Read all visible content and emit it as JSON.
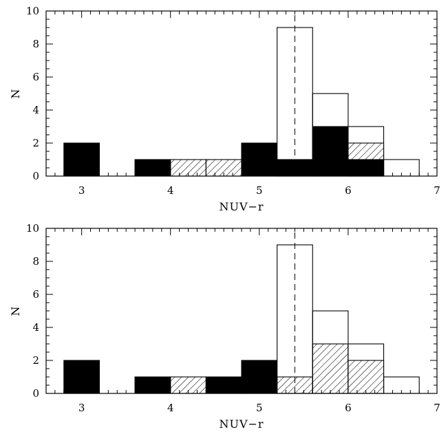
{
  "chart_data": [
    {
      "type": "histogram",
      "xlabel": "NUV−r",
      "ylabel": "N",
      "xlim": [
        2.6,
        7.0
      ],
      "ylim": [
        0,
        10
      ],
      "x_ticks": [
        3,
        4,
        5,
        6,
        7
      ],
      "y_ticks": [
        0,
        2,
        4,
        6,
        8,
        10
      ],
      "bin_width": 0.4,
      "reference_line": {
        "x": 5.4,
        "style": "dashed"
      },
      "series": [
        {
          "style": "open",
          "bins": [
            {
              "start": 2.8,
              "count": 0
            },
            {
              "start": 5.2,
              "count": 9
            },
            {
              "start": 5.6,
              "count": 5
            },
            {
              "start": 6.0,
              "count": 3
            },
            {
              "start": 6.4,
              "count": 1
            }
          ]
        },
        {
          "style": "hatched",
          "bins": [
            {
              "start": 4.0,
              "count": 1
            },
            {
              "start": 4.4,
              "count": 1
            },
            {
              "start": 6.0,
              "count": 2
            }
          ]
        },
        {
          "style": "solid",
          "bins": [
            {
              "start": 2.8,
              "count": 2
            },
            {
              "start": 3.6,
              "count": 1
            },
            {
              "start": 4.8,
              "count": 2
            },
            {
              "start": 5.2,
              "count": 1
            },
            {
              "start": 5.6,
              "count": 3
            },
            {
              "start": 6.0,
              "count": 1
            }
          ]
        }
      ]
    },
    {
      "type": "histogram",
      "xlabel": "NUV−r",
      "ylabel": "N",
      "xlim": [
        2.6,
        7.0
      ],
      "ylim": [
        0,
        10
      ],
      "x_ticks": [
        3,
        4,
        5,
        6,
        7
      ],
      "y_ticks": [
        0,
        2,
        4,
        6,
        8,
        10
      ],
      "bin_width": 0.4,
      "reference_line": {
        "x": 5.4,
        "style": "dashed"
      },
      "series": [
        {
          "style": "open",
          "bins": [
            {
              "start": 5.2,
              "count": 9
            },
            {
              "start": 5.6,
              "count": 5
            },
            {
              "start": 6.0,
              "count": 3
            },
            {
              "start": 6.4,
              "count": 1
            }
          ]
        },
        {
          "style": "hatched",
          "bins": [
            {
              "start": 4.0,
              "count": 1
            },
            {
              "start": 5.2,
              "count": 1
            },
            {
              "start": 5.6,
              "count": 3
            },
            {
              "start": 6.0,
              "count": 2
            }
          ]
        },
        {
          "style": "solid",
          "bins": [
            {
              "start": 2.8,
              "count": 2
            },
            {
              "start": 3.6,
              "count": 1
            },
            {
              "start": 4.4,
              "count": 1
            },
            {
              "start": 4.8,
              "count": 2
            }
          ]
        }
      ]
    }
  ]
}
